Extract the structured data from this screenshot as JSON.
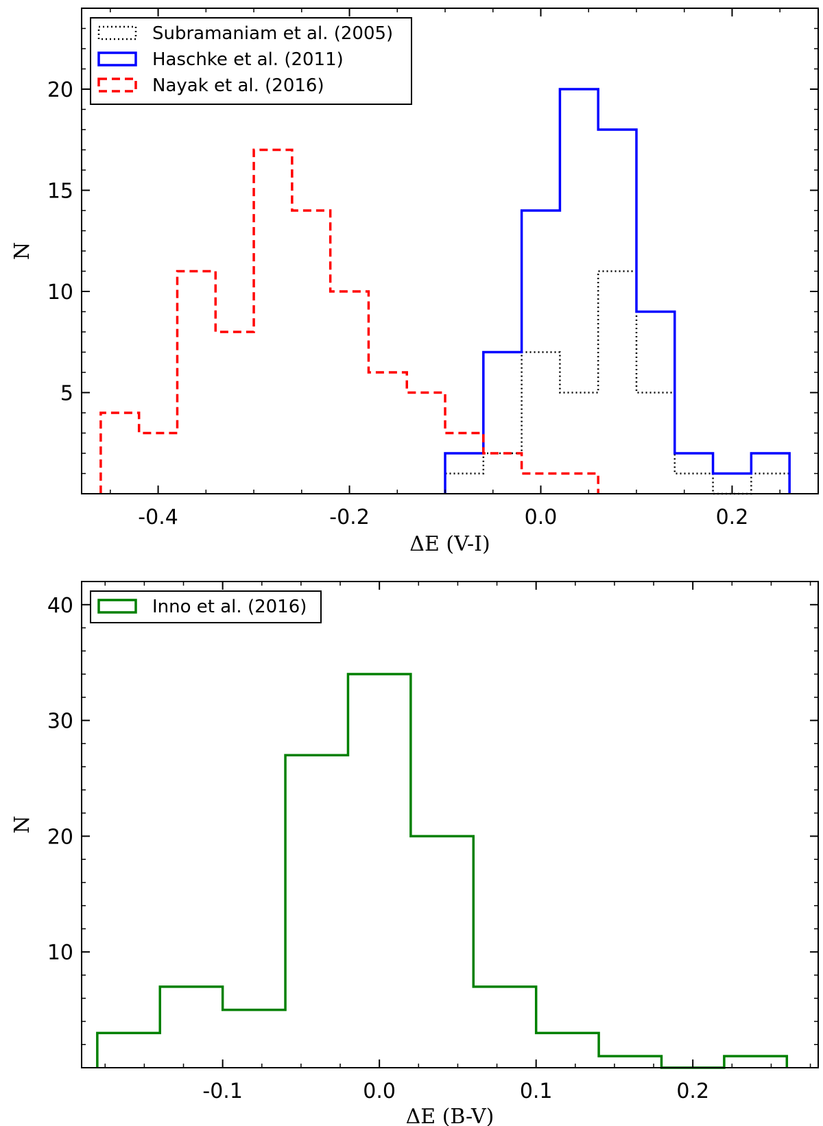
{
  "chart_data": [
    {
      "type": "step-histogram",
      "xlabel": "ΔE (V-I)",
      "ylabel": "N",
      "xlim": [
        -0.48,
        0.29
      ],
      "ylim": [
        0,
        24
      ],
      "xticks": [
        -0.4,
        -0.2,
        0.0,
        0.2
      ],
      "xtick_labels": [
        "-0.4",
        "-0.2",
        "0.0",
        "0.2"
      ],
      "yticks": [
        5,
        10,
        15,
        20
      ],
      "ytick_labels": [
        "5",
        "10",
        "15",
        "20"
      ],
      "legend_position": "top-left",
      "series": [
        {
          "name": "Subramaniam et al. (2005)",
          "color": "#000000",
          "style": "dotted",
          "edges": [
            -0.1,
            -0.06,
            -0.02,
            0.02,
            0.06,
            0.1,
            0.14,
            0.18,
            0.22,
            0.26
          ],
          "counts": [
            1,
            2,
            7,
            5,
            11,
            5,
            1,
            0,
            1
          ]
        },
        {
          "name": "Haschke et al. (2011)",
          "color": "#0000ff",
          "style": "solid",
          "edges": [
            -0.1,
            -0.06,
            -0.02,
            0.02,
            0.06,
            0.1,
            0.14,
            0.18,
            0.22,
            0.26
          ],
          "counts": [
            2,
            7,
            14,
            20,
            18,
            9,
            2,
            1,
            2
          ]
        },
        {
          "name": "Nayak et al. (2016)",
          "color": "#ff0000",
          "style": "dashed",
          "edges": [
            -0.46,
            -0.42,
            -0.38,
            -0.34,
            -0.3,
            -0.26,
            -0.22,
            -0.18,
            -0.14,
            -0.1,
            -0.06,
            -0.02,
            0.02,
            0.06
          ],
          "counts": [
            4,
            3,
            11,
            8,
            17,
            14,
            10,
            6,
            5,
            3,
            2,
            1,
            1
          ]
        }
      ]
    },
    {
      "type": "step-histogram",
      "xlabel": "ΔE (B-V)",
      "ylabel": "N",
      "xlim": [
        -0.19,
        0.28
      ],
      "ylim": [
        0,
        42
      ],
      "xticks": [
        -0.1,
        0.0,
        0.1,
        0.2
      ],
      "xtick_labels": [
        "-0.1",
        "0.0",
        "0.1",
        "0.2"
      ],
      "yticks": [
        10,
        20,
        30,
        40
      ],
      "ytick_labels": [
        "10",
        "20",
        "30",
        "40"
      ],
      "legend_position": "top-left",
      "series": [
        {
          "name": "Inno et al. (2016)",
          "color": "#008000",
          "style": "solid",
          "edges": [
            -0.18,
            -0.14,
            -0.1,
            -0.06,
            -0.02,
            0.02,
            0.06,
            0.1,
            0.14,
            0.18,
            0.22,
            0.26
          ],
          "counts": [
            3,
            7,
            5,
            27,
            34,
            20,
            7,
            3,
            1,
            0,
            1
          ]
        }
      ]
    }
  ]
}
